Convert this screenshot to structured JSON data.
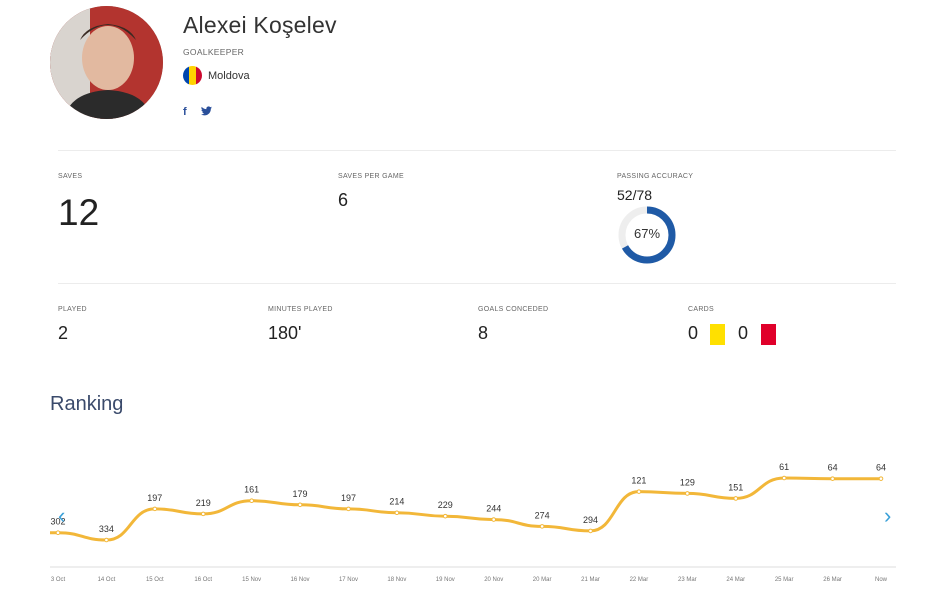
{
  "player": {
    "name": "Alexei Koşelev",
    "position": "GOALKEEPER",
    "country": "Moldova",
    "flag_colors": [
      "#0046ae",
      "#ffd200",
      "#cc092f"
    ],
    "social": [
      "f",
      "t"
    ]
  },
  "stats": {
    "saves_label": "SAVES",
    "saves_value": "12",
    "saves_per_game_label": "SAVES PER GAME",
    "saves_per_game_value": "6",
    "passing_label": "PASSING ACCURACY",
    "passing_value": "52/78",
    "passing_percent_text": "67%",
    "passing_percent": 67,
    "played_label": "PLAYED",
    "played_value": "2",
    "minutes_label": "MINUTES PLAYED",
    "minutes_value": "180'",
    "goals_label": "GOALS CONCEDED",
    "goals_value": "8",
    "cards_label": "CARDS",
    "yellow_cards": "0",
    "red_cards": "0",
    "yellow_color": "#ffe000",
    "red_color": "#e0002a"
  },
  "ranking_title": "Ranking",
  "chart_data": {
    "type": "line",
    "categories": [
      "3 Oct",
      "14 Oct",
      "15 Oct",
      "16 Oct",
      "15 Nov",
      "16 Nov",
      "17 Nov",
      "18 Nov",
      "19 Nov",
      "20 Nov",
      "20 Mar",
      "21 Mar",
      "22 Mar",
      "23 Mar",
      "24 Mar",
      "25 Mar",
      "26 Mar",
      "Now"
    ],
    "values": [
      302,
      334,
      197,
      219,
      161,
      179,
      197,
      214,
      229,
      244,
      274,
      294,
      121,
      129,
      151,
      61,
      64,
      64
    ],
    "inverted_axis": true,
    "line_color": "#f2b739"
  }
}
